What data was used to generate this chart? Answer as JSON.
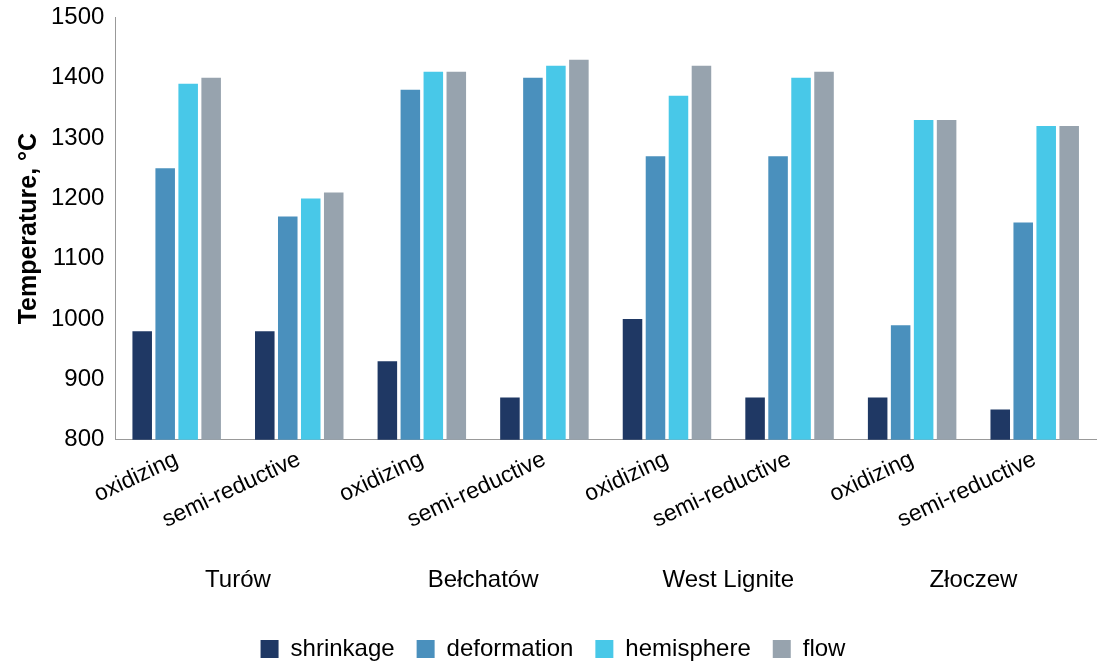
{
  "chart_data": {
    "type": "bar",
    "ylabel": "Temperature, °C",
    "categories": [
      "oxidizing",
      "semi-reductive",
      "oxidizing",
      "semi-reductive",
      "oxidizing",
      "semi-reductive",
      "oxidizing",
      "semi-reductive"
    ],
    "annotations": [
      "Turów",
      "Bełchatów",
      "West Lignite",
      "Złoczew"
    ],
    "series": [
      {
        "name": "shrinkage",
        "color": "#1f3864",
        "values": [
          980,
          980,
          930,
          870,
          1000,
          870,
          870,
          850
        ]
      },
      {
        "name": "deformation",
        "color": "#4a90bd",
        "values": [
          1250,
          1170,
          1380,
          1400,
          1270,
          1270,
          990,
          1160
        ]
      },
      {
        "name": "hemisphere",
        "color": "#48c8e8",
        "values": [
          1390,
          1200,
          1410,
          1420,
          1370,
          1400,
          1330,
          1320
        ]
      },
      {
        "name": "flow",
        "color": "#97a3ae",
        "values": [
          1400,
          1210,
          1410,
          1430,
          1420,
          1410,
          1330,
          1320
        ]
      }
    ],
    "ylim": [
      800,
      1500
    ],
    "yticks": [
      800,
      900,
      1000,
      1100,
      1200,
      1300,
      1400,
      1500
    ],
    "grid": false,
    "legend": "bottom"
  }
}
